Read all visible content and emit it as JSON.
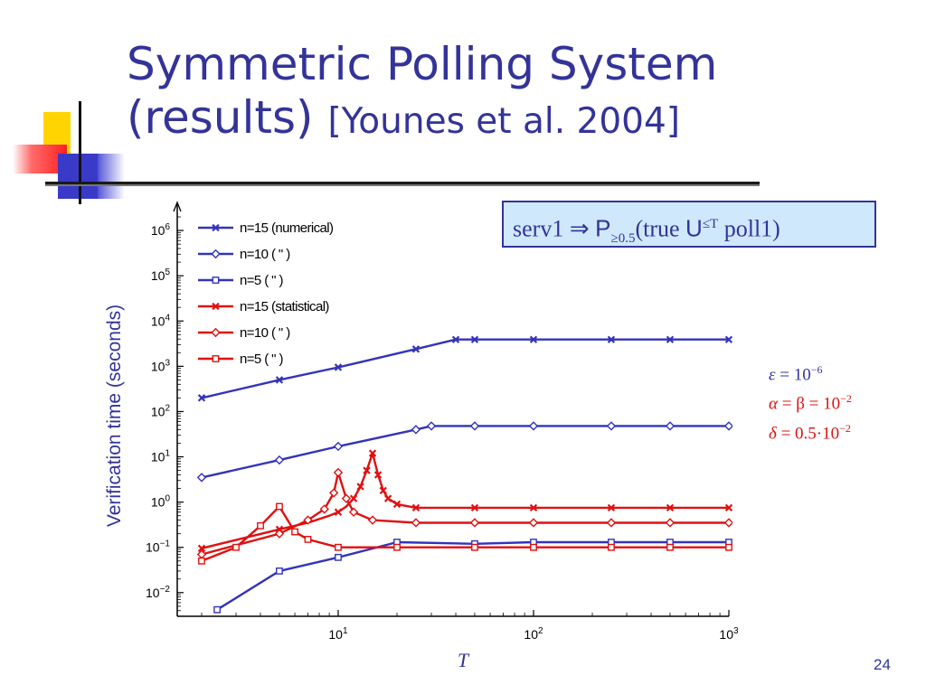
{
  "slide": {
    "title_line1": "Symmetric Polling System",
    "title_line2": "(results)",
    "title_citation": "[Younes et al. 2004]",
    "page_number": "24",
    "formula": {
      "lhs": "serv1",
      "implies": "⇒",
      "prob": "P",
      "prob_sub": "≥0.5",
      "open": "(true ",
      "until": "U",
      "until_sup": "≤T",
      "close": " poll1)"
    },
    "params": [
      {
        "prefix": "ε",
        "text": " = 10",
        "exp": "−6"
      },
      {
        "prefix": "α",
        "text": " = β = 10",
        "exp": "−2"
      },
      {
        "prefix": "δ",
        "text": " = 0.5·10",
        "exp": "−2"
      }
    ]
  },
  "colors": {
    "numerical": "#3333bb",
    "statistical": "#e01010",
    "title": "#333399",
    "deco_yellow": "#ffd400",
    "deco_red": "#ff3333",
    "deco_blue": "#3a3ac8"
  },
  "chart_data": {
    "type": "line",
    "title": "",
    "xlabel": "T",
    "ylabel": "Verification time (seconds)",
    "xscale": "log",
    "yscale": "log",
    "xlim": [
      1.5,
      1000
    ],
    "ylim": [
      0.003,
      2000000
    ],
    "x_ticks": [
      {
        "value": 10,
        "base": "10",
        "exp": "1"
      },
      {
        "value": 100,
        "base": "10",
        "exp": "2"
      },
      {
        "value": 1000,
        "base": "10",
        "exp": "3"
      }
    ],
    "y_ticks": [
      {
        "value": 0.01,
        "base": "10",
        "exp": "−2"
      },
      {
        "value": 0.1,
        "base": "10",
        "exp": "−1"
      },
      {
        "value": 1,
        "base": "10",
        "exp": "0"
      },
      {
        "value": 10,
        "base": "10",
        "exp": "1"
      },
      {
        "value": 100,
        "base": "10",
        "exp": "2"
      },
      {
        "value": 1000,
        "base": "10",
        "exp": "3"
      },
      {
        "value": 10000,
        "base": "10",
        "exp": "4"
      },
      {
        "value": 100000,
        "base": "10",
        "exp": "5"
      },
      {
        "value": 1000000,
        "base": "10",
        "exp": "6"
      }
    ],
    "grid": false,
    "legend_position": "top-left",
    "series": [
      {
        "name": "n=15 (numerical)",
        "group": "numerical",
        "marker": "x",
        "x": [
          2,
          5,
          10,
          25,
          40,
          50,
          100,
          250,
          500,
          1000
        ],
        "y": [
          200,
          500,
          950,
          2400,
          3900,
          3900,
          3900,
          3900,
          3900,
          3900
        ]
      },
      {
        "name": "n=10 ( \" )",
        "group": "numerical",
        "marker": "diamond",
        "x": [
          2,
          5,
          10,
          25,
          30,
          50,
          100,
          250,
          500,
          1000
        ],
        "y": [
          3.5,
          8.5,
          17,
          40,
          48,
          48,
          48,
          48,
          48,
          48
        ]
      },
      {
        "name": "n=5 ( \" )",
        "group": "numerical",
        "marker": "square",
        "x": [
          2.4,
          5,
          10,
          20,
          50,
          100,
          250,
          500,
          1000
        ],
        "y": [
          0.0042,
          0.03,
          0.06,
          0.13,
          0.12,
          0.13,
          0.13,
          0.13,
          0.13
        ]
      },
      {
        "name": "n=15 (statistical)",
        "group": "statistical",
        "marker": "x",
        "x": [
          2,
          5,
          7,
          9,
          10,
          11,
          12,
          13,
          14,
          15,
          16,
          17,
          18,
          20,
          25,
          50,
          100,
          250,
          500,
          1000
        ],
        "y": [
          0.095,
          0.25,
          0.35,
          0.5,
          0.6,
          0.8,
          1.2,
          2.2,
          5,
          12,
          4,
          1.8,
          1.2,
          0.9,
          0.75,
          0.75,
          0.75,
          0.75,
          0.75,
          0.75
        ],
        "marker_x": [
          2,
          5,
          10,
          12,
          13,
          14,
          15,
          16,
          17,
          18,
          20,
          25,
          50,
          100,
          250,
          500,
          1000
        ]
      },
      {
        "name": "n=10 ( \" )",
        "group": "statistical",
        "marker": "diamond",
        "x": [
          2,
          5,
          7,
          8.5,
          9.5,
          10,
          11,
          12,
          15,
          25,
          50,
          100,
          250,
          500,
          1000
        ],
        "y": [
          0.07,
          0.2,
          0.4,
          0.7,
          1.6,
          4.5,
          1.2,
          0.6,
          0.4,
          0.35,
          0.35,
          0.35,
          0.35,
          0.35,
          0.35
        ]
      },
      {
        "name": "n=5 ( \" )",
        "group": "statistical",
        "marker": "square",
        "x": [
          2,
          3,
          4,
          5,
          6,
          7,
          10,
          20,
          50,
          100,
          250,
          500,
          1000
        ],
        "y": [
          0.05,
          0.1,
          0.3,
          0.8,
          0.22,
          0.15,
          0.1,
          0.1,
          0.1,
          0.1,
          0.1,
          0.1,
          0.1
        ]
      }
    ]
  }
}
